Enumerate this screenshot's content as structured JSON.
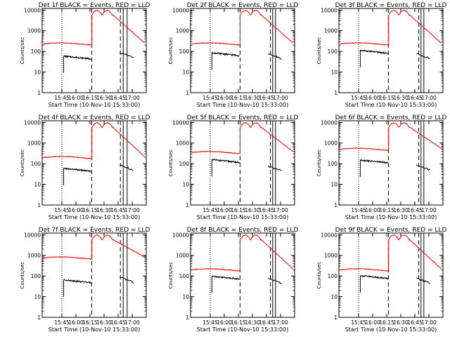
{
  "chart_data": [
    {
      "type": "line",
      "title": "Det 1f BLACK = Events, RED = LLD",
      "xlabel": "Start Time (10-Nov-10 15:33:00)",
      "ylabel": "Counts/sec",
      "yscale": "log",
      "ylim": [
        1,
        12000
      ],
      "xlim": [
        15.4,
        17.25
      ],
      "x_ticks": [
        "15:45",
        "16:00",
        "16:15",
        "16:30",
        "16:45",
        "17:00"
      ],
      "y_ticks": [
        "1",
        "10",
        "100",
        "1000",
        "10000"
      ],
      "series": [
        {
          "name": "Events",
          "color": "#000000",
          "base": 45,
          "flare": 60
        },
        {
          "name": "LLD",
          "color": "#ff0000",
          "base": 230,
          "flare": 10000
        }
      ],
      "markers": {
        "solid": [
          16.84,
          16.91
        ],
        "dashed": [
          16.28,
          16.79
        ],
        "dotted": [
          15.75
        ]
      }
    },
    {
      "type": "line",
      "title": "Det 2f BLACK = Events, RED = LLD",
      "xlabel": "Start Time (10-Nov-10 15:33:00)",
      "ylabel": "Counts/sec",
      "yscale": "log",
      "ylim": [
        1,
        12000
      ],
      "xlim": [
        15.4,
        17.25
      ],
      "x_ticks": [
        "15:45",
        "16:00",
        "16:15",
        "16:30",
        "16:45",
        "17:00"
      ],
      "y_ticks": [
        "1",
        "10",
        "100",
        "1000",
        "10000"
      ],
      "series": [
        {
          "name": "Events",
          "color": "#000000",
          "base": 65,
          "flare": 55
        },
        {
          "name": "LLD",
          "color": "#ff0000",
          "base": 230,
          "flare": 10000
        }
      ],
      "markers": {
        "solid": [
          16.86,
          16.91
        ],
        "dashed": [
          16.28,
          16.82
        ],
        "dotted": [
          15.75
        ]
      }
    },
    {
      "type": "line",
      "title": "Det 3f BLACK = Events, RED = LLD",
      "xlabel": "Start Time (10-Nov-10 15:33:00)",
      "ylabel": "Counts/sec",
      "yscale": "log",
      "ylim": [
        1,
        12000
      ],
      "xlim": [
        15.4,
        17.25
      ],
      "x_ticks": [
        "15:45",
        "16:00",
        "16:15",
        "16:30",
        "16:45",
        "17:00"
      ],
      "y_ticks": [
        "1",
        "10",
        "100",
        "1000",
        "10000"
      ],
      "series": [
        {
          "name": "Events",
          "color": "#000000",
          "base": 85,
          "flare": 55
        },
        {
          "name": "LLD",
          "color": "#ff0000",
          "base": 230,
          "flare": 10000
        }
      ],
      "markers": {
        "solid": [
          16.86,
          16.91
        ],
        "dashed": [
          16.28,
          16.82
        ],
        "dotted": [
          15.75
        ]
      }
    },
    {
      "type": "line",
      "title": "Det 4f BLACK = Events, RED = LLD",
      "xlabel": "Start Time (10-Nov-10 15:33:00)",
      "ylabel": "Counts/sec",
      "yscale": "log",
      "ylim": [
        1,
        12000
      ],
      "xlim": [
        15.4,
        17.25
      ],
      "x_ticks": [
        "15:45",
        "16:00",
        "16:15",
        "16:30",
        "16:45",
        "17:00"
      ],
      "y_ticks": [
        "1",
        "10",
        "100",
        "1000",
        "10000"
      ],
      "series": [
        {
          "name": "Events",
          "color": "#000000",
          "base": 45,
          "flare": 60
        },
        {
          "name": "LLD",
          "color": "#ff0000",
          "base": 200,
          "flare": 10000
        }
      ],
      "markers": {
        "solid": [
          16.84,
          16.91
        ],
        "dashed": [
          16.28,
          16.79
        ],
        "dotted": [
          15.75
        ]
      }
    },
    {
      "type": "line",
      "title": "Det 5f BLACK = Events, RED = LLD",
      "xlabel": "Start Time (10-Nov-10 15:33:00)",
      "ylabel": "Counts/sec",
      "yscale": "log",
      "ylim": [
        1,
        12000
      ],
      "xlim": [
        15.4,
        17.25
      ],
      "x_ticks": [
        "15:45",
        "16:00",
        "16:15",
        "16:30",
        "16:45",
        "17:00"
      ],
      "y_ticks": [
        "1",
        "10",
        "100",
        "1000",
        "10000"
      ],
      "series": [
        {
          "name": "Events",
          "color": "#000000",
          "base": 120,
          "flare": 55
        },
        {
          "name": "LLD",
          "color": "#ff0000",
          "base": 350,
          "flare": 10000
        }
      ],
      "markers": {
        "solid": [
          16.86,
          16.91
        ],
        "dashed": [
          16.28,
          16.82
        ],
        "dotted": [
          15.75
        ]
      }
    },
    {
      "type": "line",
      "title": "Det 6f BLACK = Events, RED = LLD",
      "xlabel": "Start Time (10-Nov-10 15:33:00)",
      "ylabel": "Counts/sec",
      "yscale": "log",
      "ylim": [
        1,
        12000
      ],
      "xlim": [
        15.4,
        17.25
      ],
      "x_ticks": [
        "15:45",
        "16:00",
        "16:15",
        "16:30",
        "16:45",
        "17:00"
      ],
      "y_ticks": [
        "1",
        "10",
        "100",
        "1000",
        "10000"
      ],
      "series": [
        {
          "name": "Events",
          "color": "#000000",
          "base": 115,
          "flare": 60
        },
        {
          "name": "LLD",
          "color": "#ff0000",
          "base": 500,
          "flare": 10000
        }
      ],
      "markers": {
        "solid": [
          16.86,
          16.91
        ],
        "dashed": [
          16.28,
          16.82
        ],
        "dotted": [
          15.75
        ]
      }
    },
    {
      "type": "line",
      "title": "Det 7f BLACK = Events, RED = LLD",
      "xlabel": "Start Time (10-Nov-10 15:33:00)",
      "ylabel": "Counts/sec",
      "yscale": "log",
      "ylim": [
        1,
        12000
      ],
      "xlim": [
        15.4,
        17.25
      ],
      "x_ticks": [
        "15:45",
        "16:00",
        "16:15",
        "16:30",
        "16:45",
        "17:00"
      ],
      "y_ticks": [
        "1",
        "10",
        "100",
        "1000",
        "10000"
      ],
      "series": [
        {
          "name": "Events",
          "color": "#000000",
          "base": 50,
          "flare": 60
        },
        {
          "name": "LLD",
          "color": "#ff0000",
          "base": 750,
          "flare": 10000
        }
      ],
      "markers": {
        "solid": [
          16.84,
          16.91
        ],
        "dashed": [
          16.28,
          16.79
        ],
        "dotted": [
          15.75
        ]
      }
    },
    {
      "type": "line",
      "title": "Det 8f BLACK = Events, RED = LLD",
      "xlabel": "Start Time (10-Nov-10 15:33:00)",
      "ylabel": "Counts/sec",
      "yscale": "log",
      "ylim": [
        1,
        12000
      ],
      "xlim": [
        15.4,
        17.25
      ],
      "x_ticks": [
        "15:45",
        "16:00",
        "16:15",
        "16:30",
        "16:45",
        "17:00"
      ],
      "y_ticks": [
        "1",
        "10",
        "100",
        "1000",
        "10000"
      ],
      "series": [
        {
          "name": "Events",
          "color": "#000000",
          "base": 75,
          "flare": 55
        },
        {
          "name": "LLD",
          "color": "#ff0000",
          "base": 200,
          "flare": 10000
        }
      ],
      "markers": {
        "solid": [
          16.86,
          16.91
        ],
        "dashed": [
          16.28,
          16.82
        ],
        "dotted": [
          15.75
        ]
      }
    },
    {
      "type": "line",
      "title": "Det 9f BLACK = Events, RED = LLD",
      "xlabel": "Start Time (10-Nov-10 15:33:00)",
      "ylabel": "Counts/sec",
      "yscale": "log",
      "ylim": [
        1,
        12000
      ],
      "xlim": [
        15.4,
        17.25
      ],
      "x_ticks": [
        "15:45",
        "16:00",
        "16:15",
        "16:30",
        "16:45",
        "17:00"
      ],
      "y_ticks": [
        "1",
        "10",
        "100",
        "1000",
        "10000"
      ],
      "series": [
        {
          "name": "Events",
          "color": "#000000",
          "base": 80,
          "flare": 55
        },
        {
          "name": "LLD",
          "color": "#ff0000",
          "base": 200,
          "flare": 10000
        }
      ],
      "markers": {
        "solid": [
          16.86,
          16.91
        ],
        "dashed": [
          16.28,
          16.82
        ],
        "dotted": [
          15.75
        ]
      }
    }
  ]
}
